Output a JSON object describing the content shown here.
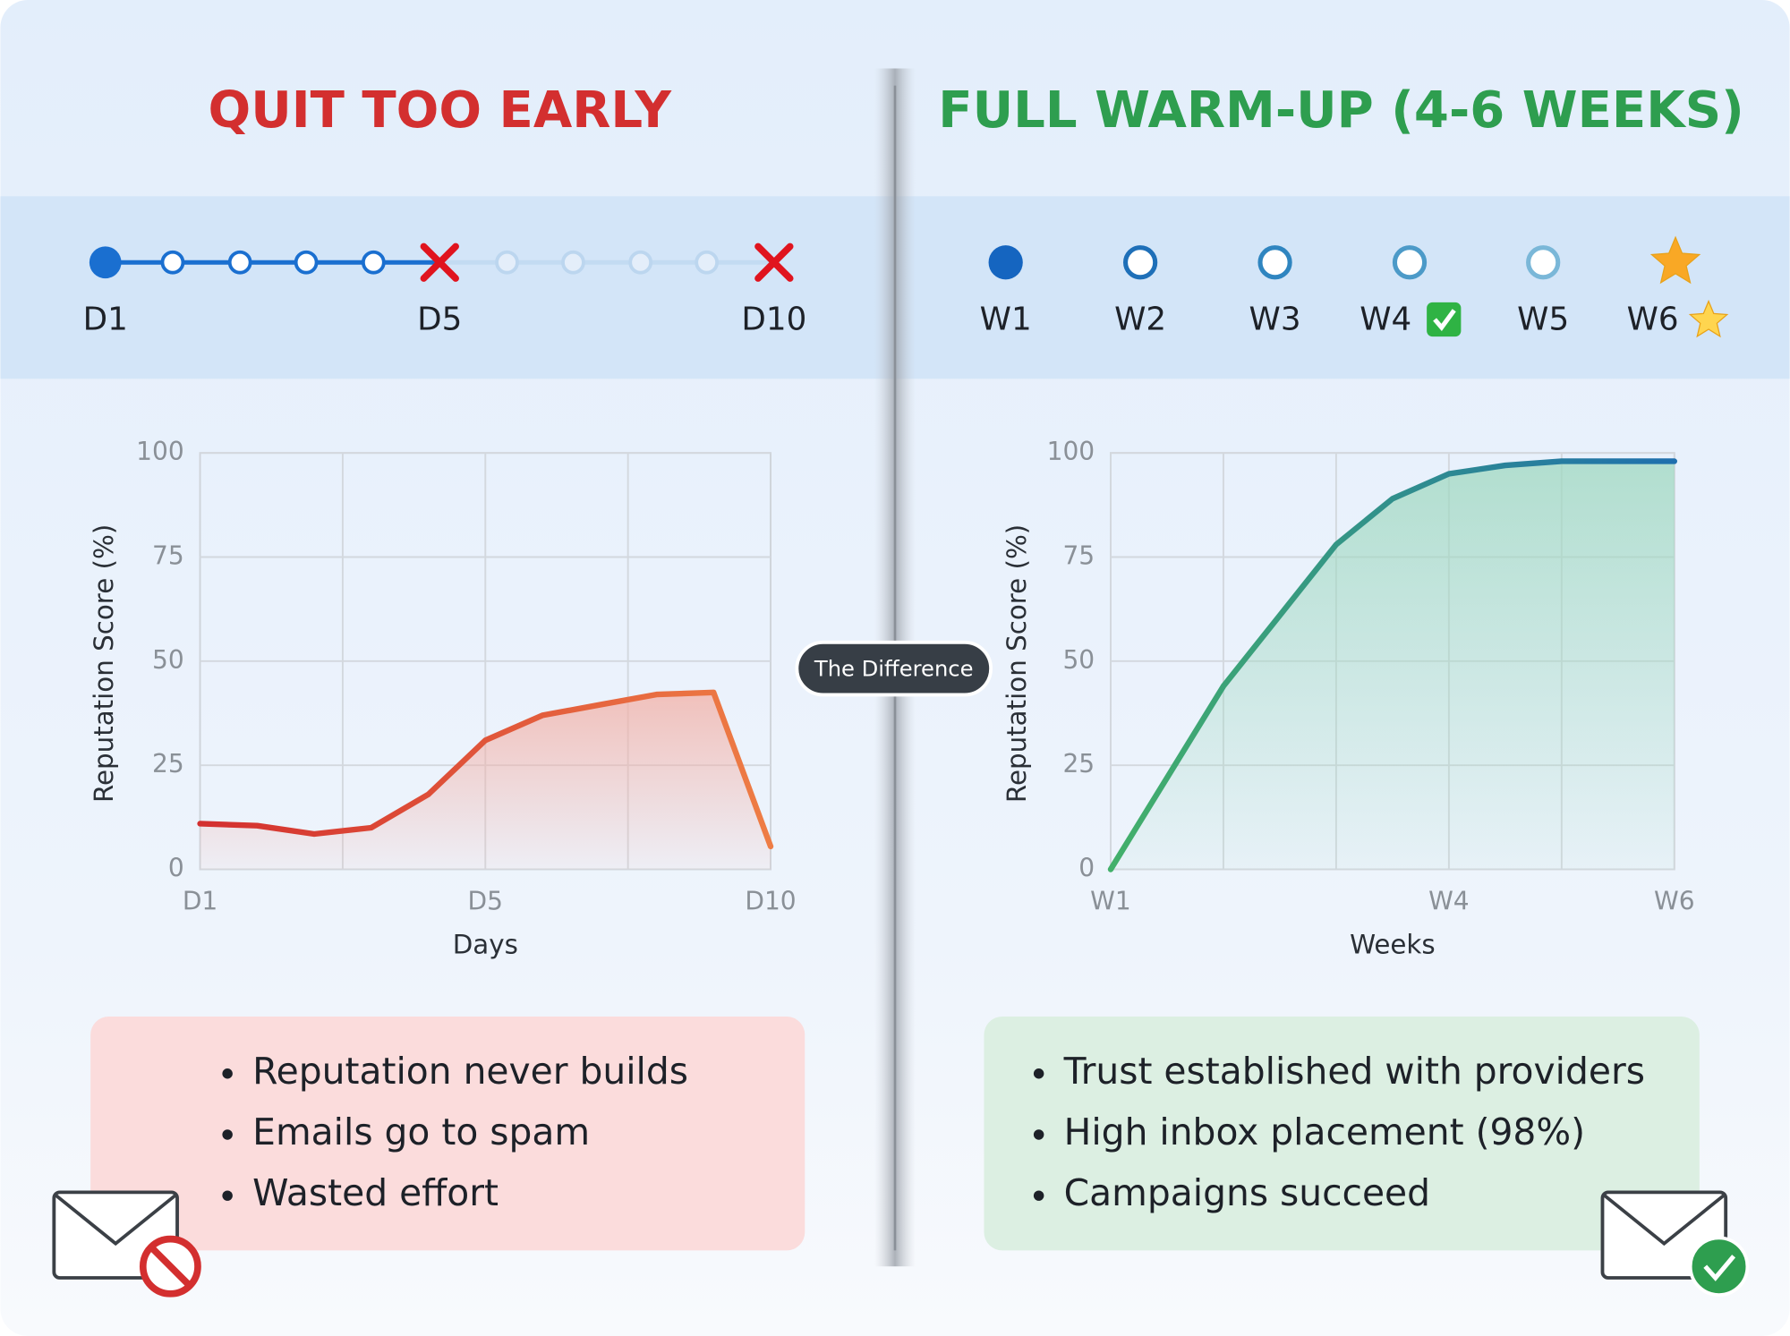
{
  "left": {
    "title": "QUIT TOO EARLY",
    "timeline": [
      "D1",
      "D5",
      "D10"
    ],
    "bullets": [
      "Reputation never builds",
      "Emails go to spam",
      "Wasted effort"
    ]
  },
  "right": {
    "title": "FULL WARM-UP (4-6 WEEKS)",
    "timeline": [
      "W1",
      "W2",
      "W3",
      "W4",
      "W5",
      "W6"
    ],
    "bullets": [
      "Trust established with providers",
      "High inbox placement (98%)",
      "Campaigns succeed"
    ]
  },
  "divider_label": "The Difference",
  "chart_data": [
    {
      "type": "line",
      "ylabel": "Reputation Score (%)",
      "xlabel": "Days",
      "categories": [
        "D1",
        null,
        null,
        null,
        null,
        "D5",
        null,
        null,
        null,
        null,
        "D10"
      ],
      "values": [
        11,
        10.5,
        8.5,
        10,
        18,
        31,
        37,
        39.5,
        42,
        42.5,
        5.5
      ],
      "colors": [
        "#d32f2f",
        "#ee7d45"
      ],
      "fill_color": "#f3b0a6",
      "ylim": [
        0,
        100
      ],
      "yticks": [
        0,
        25,
        50,
        75,
        100
      ],
      "grid": true
    },
    {
      "type": "line",
      "ylabel": "Reputation Score (%)",
      "xlabel": "Weeks",
      "x": [
        1,
        1.5,
        2,
        2.5,
        3,
        3.5,
        4,
        4.5,
        5,
        5.5,
        6
      ],
      "values": [
        0,
        22,
        44,
        61,
        78,
        89,
        95,
        97,
        98,
        98,
        98
      ],
      "colors": [
        "#43b06a",
        "#1f6fae"
      ],
      "fill_color": "#9fd8c0",
      "xlim": [
        1,
        6
      ],
      "xticks": [
        {
          "value": 1,
          "label": "W1"
        },
        {
          "value": 2,
          "label": null
        },
        {
          "value": 3,
          "label": null
        },
        {
          "value": 4,
          "label": "W4"
        },
        {
          "value": 5,
          "label": null
        },
        {
          "value": 6,
          "label": "W6"
        }
      ],
      "ylim": [
        0,
        100
      ],
      "yticks": [
        0,
        25,
        50,
        75,
        100
      ],
      "grid": true
    }
  ]
}
